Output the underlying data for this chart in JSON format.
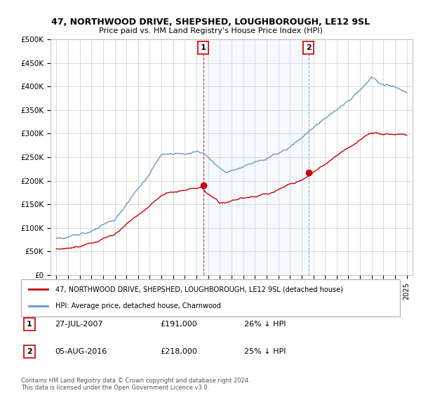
{
  "title": "47, NORTHWOOD DRIVE, SHEPSHED, LOUGHBOROUGH, LE12 9SL",
  "subtitle": "Price paid vs. HM Land Registry's House Price Index (HPI)",
  "ylabel_ticks": [
    "£0",
    "£50K",
    "£100K",
    "£150K",
    "£200K",
    "£250K",
    "£300K",
    "£350K",
    "£400K",
    "£450K",
    "£500K"
  ],
  "ytick_values": [
    0,
    50000,
    100000,
    150000,
    200000,
    250000,
    300000,
    350000,
    400000,
    450000,
    500000
  ],
  "ylim": [
    0,
    500000
  ],
  "xlim_start": 1994.5,
  "xlim_end": 2025.5,
  "marker1_x": 2007.57,
  "marker1_y": 191000,
  "marker1_label": "1",
  "marker1_date": "27-JUL-2007",
  "marker1_price": "£191,000",
  "marker1_hpi": "26% ↓ HPI",
  "marker2_x": 2016.59,
  "marker2_y": 218000,
  "marker2_label": "2",
  "marker2_date": "05-AUG-2016",
  "marker2_price": "£218,000",
  "marker2_hpi": "25% ↓ HPI",
  "sale_color": "#cc0000",
  "hpi_color": "#6699cc",
  "vline1_color": "#cc0000",
  "vline2_color": "#8899aa",
  "shade_color": "#ddeeff",
  "grid_color": "#cccccc",
  "legend_label_sale": "47, NORTHWOOD DRIVE, SHEPSHED, LOUGHBOROUGH, LE12 9SL (detached house)",
  "legend_label_hpi": "HPI: Average price, detached house, Charnwood",
  "footnote": "Contains HM Land Registry data © Crown copyright and database right 2024.\nThis data is licensed under the Open Government Licence v3.0.",
  "xtick_years": [
    1995,
    1996,
    1997,
    1998,
    1999,
    2000,
    2001,
    2002,
    2003,
    2004,
    2005,
    2006,
    2007,
    2008,
    2009,
    2010,
    2011,
    2012,
    2013,
    2014,
    2015,
    2016,
    2017,
    2018,
    2019,
    2020,
    2021,
    2022,
    2023,
    2024,
    2025
  ]
}
